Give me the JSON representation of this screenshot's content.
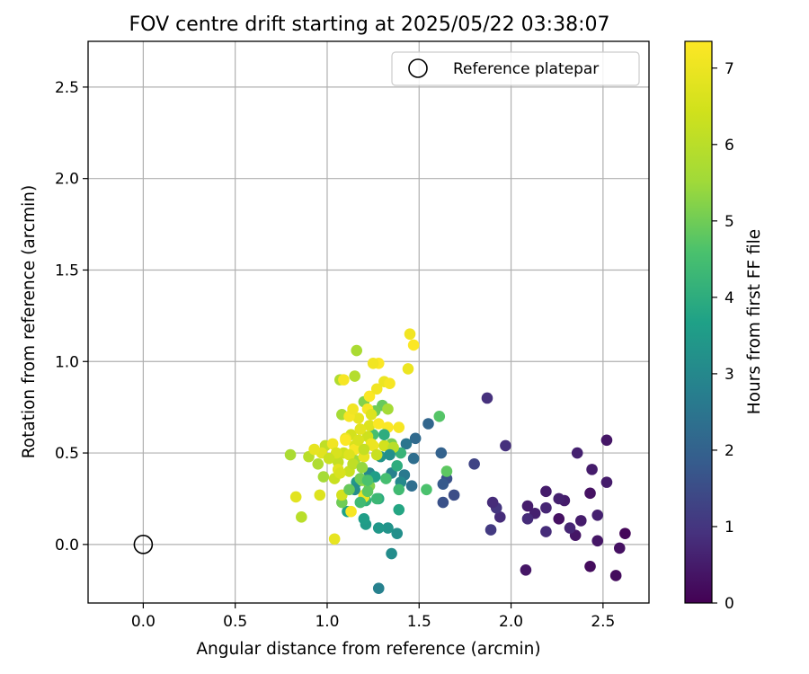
{
  "chart_data": {
    "type": "scatter",
    "title": "FOV centre drift starting at 2025/05/22 03:38:07",
    "xlabel": "Angular distance from reference (arcmin)",
    "ylabel": "Rotation from reference (arcmin)",
    "xlim": [
      -0.3,
      2.75
    ],
    "ylim": [
      -0.32,
      2.75
    ],
    "xticks": [
      "0.0",
      "0.5",
      "1.0",
      "1.5",
      "2.0",
      "2.5"
    ],
    "yticks": [
      "0.0",
      "0.5",
      "1.0",
      "1.5",
      "2.0",
      "2.5"
    ],
    "grid": true,
    "legend": {
      "position": "top-right",
      "entries": [
        {
          "label": "Reference platepar",
          "marker": "open-circle"
        }
      ]
    },
    "reference_point": [
      0.0,
      0.0
    ],
    "colorbar": {
      "label": "Hours from first FF file",
      "cmap": "viridis",
      "range": [
        0,
        7.35
      ],
      "ticks": [
        "0",
        "1",
        "2",
        "3",
        "4",
        "5",
        "6",
        "7"
      ]
    },
    "points": [
      [
        2.62,
        0.06,
        0.1
      ],
      [
        2.59,
        -0.02,
        0.3
      ],
      [
        2.57,
        -0.17,
        0.2
      ],
      [
        2.52,
        0.57,
        0.4
      ],
      [
        2.52,
        0.34,
        0.5
      ],
      [
        2.47,
        0.16,
        0.6
      ],
      [
        2.47,
        0.02,
        0.4
      ],
      [
        2.44,
        0.41,
        0.5
      ],
      [
        2.43,
        0.28,
        0.3
      ],
      [
        2.43,
        -0.12,
        0.2
      ],
      [
        2.38,
        0.13,
        0.5
      ],
      [
        2.36,
        0.5,
        0.6
      ],
      [
        2.35,
        0.05,
        0.4
      ],
      [
        2.32,
        0.09,
        0.7
      ],
      [
        2.29,
        0.24,
        0.5
      ],
      [
        2.26,
        0.25,
        0.6
      ],
      [
        2.26,
        0.14,
        0.3
      ],
      [
        2.19,
        0.29,
        0.5
      ],
      [
        2.19,
        0.2,
        0.7
      ],
      [
        2.19,
        0.07,
        0.8
      ],
      [
        2.13,
        0.17,
        0.6
      ],
      [
        2.09,
        0.21,
        0.5
      ],
      [
        2.09,
        0.14,
        0.8
      ],
      [
        2.08,
        -0.14,
        0.4
      ],
      [
        1.97,
        0.54,
        0.9
      ],
      [
        1.94,
        0.15,
        0.8
      ],
      [
        1.92,
        0.2,
        1.0
      ],
      [
        1.9,
        0.23,
        0.8
      ],
      [
        1.89,
        0.08,
        1.1
      ],
      [
        1.87,
        0.8,
        0.9
      ],
      [
        1.8,
        0.44,
        1.3
      ],
      [
        1.69,
        0.27,
        1.5
      ],
      [
        1.65,
        0.36,
        1.6
      ],
      [
        1.63,
        0.23,
        1.6
      ],
      [
        1.63,
        0.33,
        1.8
      ],
      [
        1.62,
        0.5,
        2.0
      ],
      [
        1.55,
        0.66,
        2.1
      ],
      [
        1.48,
        0.58,
        2.2
      ],
      [
        1.47,
        0.47,
        2.3
      ],
      [
        1.46,
        0.32,
        2.3
      ],
      [
        1.43,
        0.55,
        2.5
      ],
      [
        1.42,
        0.38,
        2.6
      ],
      [
        1.4,
        0.34,
        3.0
      ],
      [
        1.35,
        0.39,
        2.8
      ],
      [
        1.28,
        -0.24,
        2.8
      ],
      [
        1.35,
        -0.05,
        3.1
      ],
      [
        1.38,
        0.06,
        3.2
      ],
      [
        1.33,
        0.09,
        3.3
      ],
      [
        1.28,
        0.09,
        3.4
      ],
      [
        1.21,
        0.11,
        3.5
      ],
      [
        1.2,
        0.14,
        3.6
      ],
      [
        1.11,
        0.18,
        3.7
      ],
      [
        1.39,
        0.19,
        3.8
      ],
      [
        1.28,
        0.25,
        3.9
      ],
      [
        1.21,
        0.24,
        4.1
      ],
      [
        1.23,
        0.39,
        3.0
      ],
      [
        1.29,
        0.48,
        3.3
      ],
      [
        1.16,
        0.34,
        3.4
      ],
      [
        1.32,
        0.36,
        4.5
      ],
      [
        1.38,
        0.43,
        4.0
      ],
      [
        1.4,
        0.5,
        4.2
      ],
      [
        1.39,
        0.3,
        4.4
      ],
      [
        1.54,
        0.3,
        4.6
      ],
      [
        1.65,
        0.4,
        4.8
      ],
      [
        1.61,
        0.7,
        4.7
      ],
      [
        1.3,
        0.76,
        4.9
      ],
      [
        1.26,
        0.73,
        5.0
      ],
      [
        1.2,
        0.78,
        5.2
      ],
      [
        1.35,
        0.55,
        5.1
      ],
      [
        1.25,
        0.6,
        4.5
      ],
      [
        1.08,
        0.23,
        5.0
      ],
      [
        1.19,
        0.35,
        5.3
      ],
      [
        1.15,
        0.46,
        5.5
      ],
      [
        1.08,
        0.71,
        5.6
      ],
      [
        1.07,
        0.9,
        5.8
      ],
      [
        1.16,
        1.06,
        5.7
      ],
      [
        1.15,
        0.92,
        5.9
      ],
      [
        0.98,
        0.37,
        5.6
      ],
      [
        0.95,
        0.44,
        5.8
      ],
      [
        0.9,
        0.48,
        6.0
      ],
      [
        0.8,
        0.49,
        5.7
      ],
      [
        0.86,
        0.15,
        6.0
      ],
      [
        0.99,
        0.54,
        6.1
      ],
      [
        1.04,
        0.36,
        6.3
      ],
      [
        1.06,
        0.45,
        6.2
      ],
      [
        1.09,
        0.5,
        6.4
      ],
      [
        1.08,
        0.27,
        6.5
      ],
      [
        1.12,
        0.4,
        6.3
      ],
      [
        1.15,
        0.54,
        6.6
      ],
      [
        1.13,
        0.6,
        6.5
      ],
      [
        1.22,
        0.59,
        6.4
      ],
      [
        1.23,
        0.65,
        6.7
      ],
      [
        1.17,
        0.69,
        6.9
      ],
      [
        1.1,
        0.58,
        7.0
      ],
      [
        1.06,
        0.41,
        6.8
      ],
      [
        1.12,
        0.7,
        7.2
      ],
      [
        1.14,
        0.74,
        7.1
      ],
      [
        1.2,
        0.26,
        7.0
      ],
      [
        1.22,
        0.74,
        7.2
      ],
      [
        1.23,
        0.81,
        7.3
      ],
      [
        1.27,
        0.85,
        7.1
      ],
      [
        1.31,
        0.89,
        7.0
      ],
      [
        1.34,
        0.88,
        7.2
      ],
      [
        1.28,
        0.99,
        7.3
      ],
      [
        1.25,
        0.99,
        7.1
      ],
      [
        1.09,
        0.9,
        7.2
      ],
      [
        1.44,
        0.96,
        7.0
      ],
      [
        1.45,
        1.15,
        7.1
      ],
      [
        1.47,
        1.09,
        7.3
      ],
      [
        1.39,
        0.64,
        7.2
      ],
      [
        1.33,
        0.64,
        7.3
      ],
      [
        1.25,
        0.54,
        7.1
      ],
      [
        1.2,
        0.48,
        6.9
      ],
      [
        1.15,
        0.52,
        7.2
      ],
      [
        1.1,
        0.57,
        7.3
      ],
      [
        1.03,
        0.55,
        7.1
      ],
      [
        0.97,
        0.5,
        6.8
      ],
      [
        0.93,
        0.52,
        6.9
      ],
      [
        0.96,
        0.27,
        6.7
      ],
      [
        0.83,
        0.26,
        6.8
      ],
      [
        1.04,
        0.03,
        6.9
      ],
      [
        1.13,
        0.18,
        7.2
      ],
      [
        1.2,
        0.27,
        7.0
      ],
      [
        1.24,
        0.55,
        7.0
      ],
      [
        1.28,
        0.66,
        7.3
      ],
      [
        1.27,
        0.49,
        6.3
      ],
      [
        1.31,
        0.54,
        6.5
      ],
      [
        1.36,
        0.53,
        6.0
      ],
      [
        1.33,
        0.74,
        5.6
      ],
      [
        1.2,
        0.52,
        6.2
      ],
      [
        1.17,
        0.57,
        6.6
      ],
      [
        1.12,
        0.49,
        6.7
      ],
      [
        1.05,
        0.5,
        6.6
      ],
      [
        1.01,
        0.47,
        6.3
      ],
      [
        1.07,
        0.39,
        6.6
      ],
      [
        1.14,
        0.44,
        6.1
      ],
      [
        1.18,
        0.63,
        6.8
      ],
      [
        1.24,
        0.71,
        6.7
      ],
      [
        1.18,
        0.36,
        5.0
      ],
      [
        1.23,
        0.32,
        5.2
      ],
      [
        1.22,
        0.29,
        4.8
      ],
      [
        1.27,
        0.25,
        4.3
      ],
      [
        1.31,
        0.6,
        4.0
      ],
      [
        1.34,
        0.49,
        3.2
      ],
      [
        1.15,
        0.3,
        3.1
      ],
      [
        1.19,
        0.42,
        5.4
      ],
      [
        1.26,
        0.37,
        3.6
      ],
      [
        1.18,
        0.23,
        4.4
      ],
      [
        1.12,
        0.3,
        4.9
      ],
      [
        1.22,
        0.35,
        4.6
      ]
    ]
  }
}
